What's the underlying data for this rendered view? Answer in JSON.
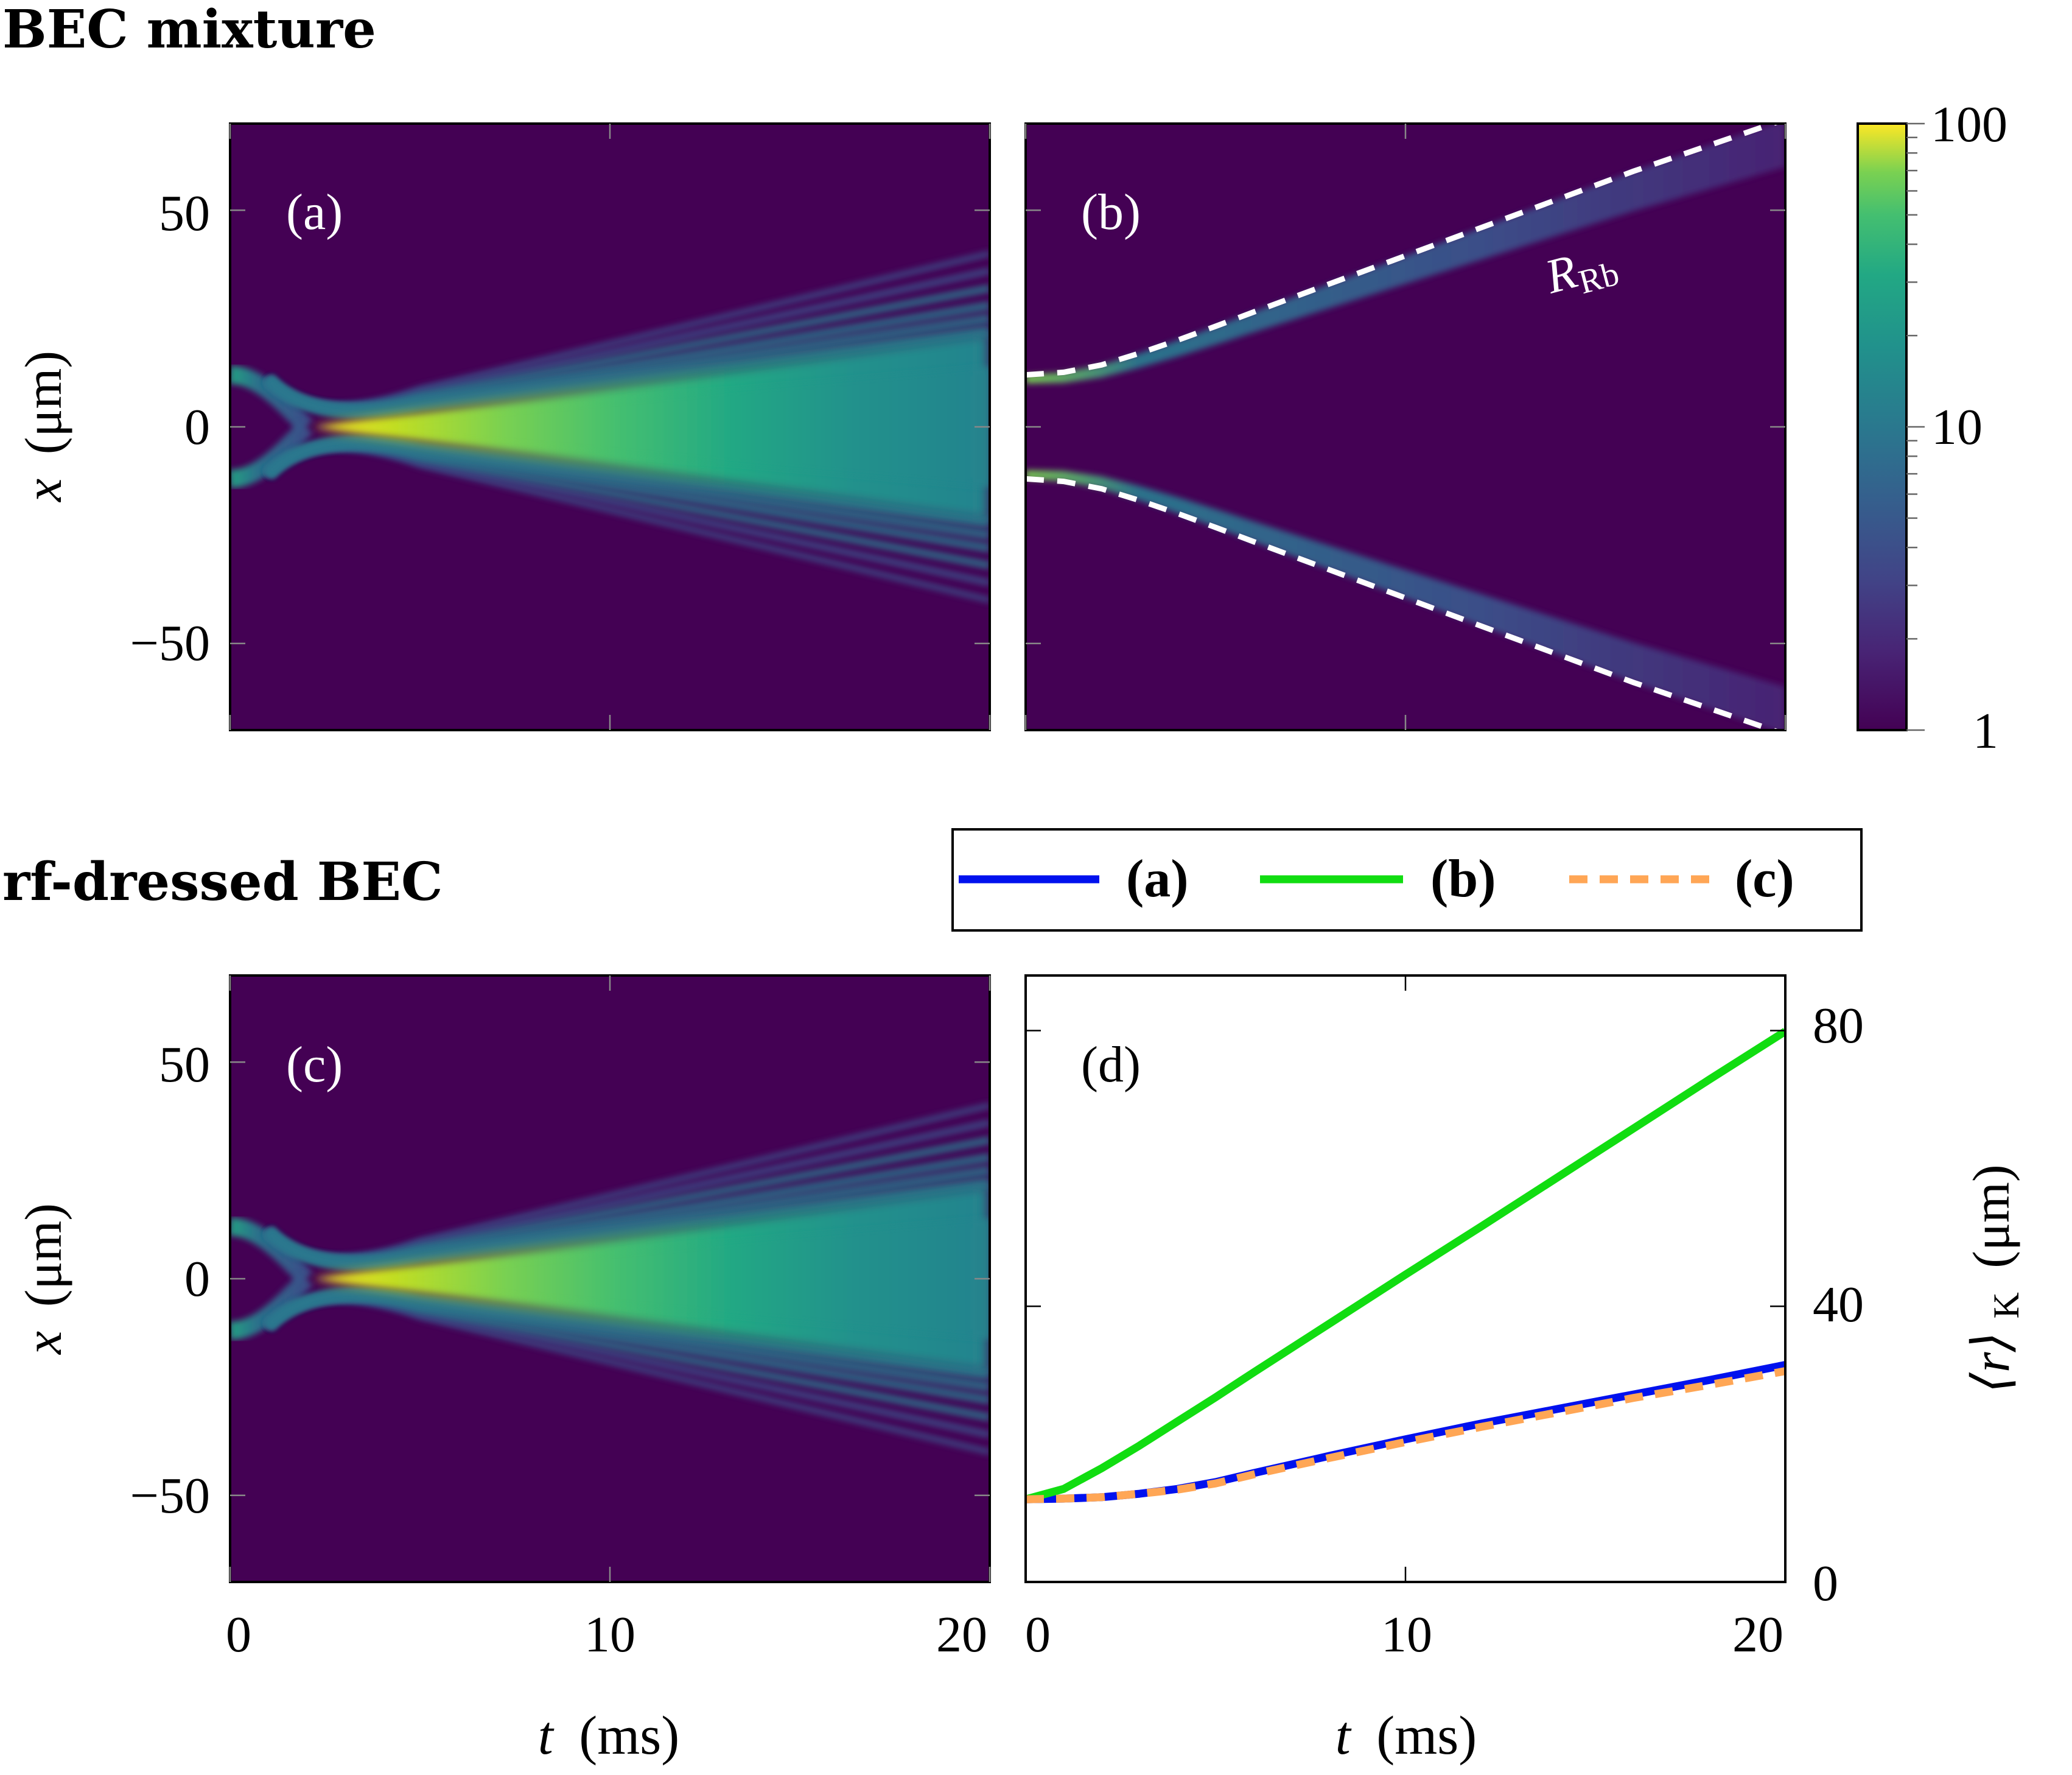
{
  "headings": {
    "top": "BEC mixture",
    "bottom": "rf-dressed BEC"
  },
  "colors": {
    "viridis_dark": "#440154",
    "viridis_mid": "#21918c",
    "viridis_bright": "#fde725",
    "frame": "#000000",
    "dashed_overlay": "#ffffff",
    "series_a": "#0011ee",
    "series_b": "#11dd11",
    "series_c": "#ffa655"
  },
  "chart_data": [
    {
      "type": "heatmap",
      "panel": "(a)",
      "xlabel": "",
      "ylabel_var": "x",
      "ylabel_unit": "(μm)",
      "xlim": [
        0,
        20
      ],
      "ylim": [
        -70,
        70
      ],
      "x_ticks": [
        0,
        10,
        20
      ],
      "y_ticks": [
        50,
        0,
        -50
      ],
      "y_tick_labels": [
        "50",
        "0",
        "−50"
      ],
      "color_scale": "log",
      "description_values": {
        "initial_edges_um": [
          -12,
          12
        ],
        "collapse_time_ms": 2,
        "peak_density": 100,
        "outer_fringe_extent_at_20ms_um": 40
      }
    },
    {
      "type": "heatmap",
      "panel": "(b)",
      "xlim": [
        0,
        20
      ],
      "ylim": [
        -70,
        70
      ],
      "color_scale": "log",
      "annotation": "R",
      "annotation_sub": "Rb",
      "boundary_curve": {
        "name": "R_Rb",
        "t": [
          0,
          1,
          2,
          3,
          4,
          5,
          6,
          8,
          10,
          12,
          14,
          16,
          18,
          20
        ],
        "x": [
          12,
          12.6,
          14.3,
          17,
          20,
          23.2,
          26.5,
          33,
          39.5,
          46,
          52.5,
          59,
          65,
          71
        ]
      }
    },
    {
      "type": "colorbar",
      "scale": "log",
      "range": [
        1,
        100
      ],
      "tick_labels": [
        "100",
        "10",
        "1"
      ]
    },
    {
      "type": "heatmap",
      "panel": "(c)",
      "xlabel_var": "t",
      "xlabel_unit": "(ms)",
      "ylabel_var": "x",
      "ylabel_unit": "(μm)",
      "xlim": [
        0,
        20
      ],
      "ylim": [
        -70,
        70
      ],
      "x_ticks": [
        "0",
        "10",
        "20"
      ],
      "y_ticks": [
        "50",
        "0",
        "−50"
      ],
      "color_scale": "log"
    },
    {
      "type": "line",
      "panel": "(d)",
      "xlabel_var": "t",
      "xlabel_unit": "(ms)",
      "ylabel_left": "⟨r⟩",
      "ylabel_sub": "K",
      "ylabel_unit": "(μm)",
      "xlim": [
        0,
        20
      ],
      "ylim": [
        0,
        88
      ],
      "x_ticks": [
        "0",
        "10",
        "20"
      ],
      "y_ticks": [
        "80",
        "40",
        "0"
      ],
      "legend_position": "top, above panel",
      "legend": [
        "(a)",
        "(b)",
        "(c)"
      ],
      "x": [
        0,
        1,
        2,
        3,
        4,
        5,
        6,
        8,
        10,
        12,
        14,
        16,
        18,
        20
      ],
      "series": [
        {
          "name": "(a)",
          "style": "solid",
          "values": [
            12,
            12.1,
            12.3,
            12.8,
            13.5,
            14.5,
            15.8,
            18.3,
            20.7,
            23.0,
            25.1,
            27.2,
            29.3,
            31.5
          ]
        },
        {
          "name": "(b)",
          "style": "solid",
          "values": [
            12,
            13.5,
            16.5,
            19.8,
            23.3,
            26.8,
            30.4,
            37.5,
            44.6,
            51.6,
            58.7,
            65.8,
            72.9,
            79.9
          ]
        },
        {
          "name": "(c)",
          "style": "dashed",
          "values": [
            12,
            12.1,
            12.3,
            12.8,
            13.4,
            14.3,
            15.6,
            18.0,
            20.3,
            22.5,
            24.6,
            26.7,
            28.6,
            30.6
          ]
        }
      ]
    }
  ]
}
